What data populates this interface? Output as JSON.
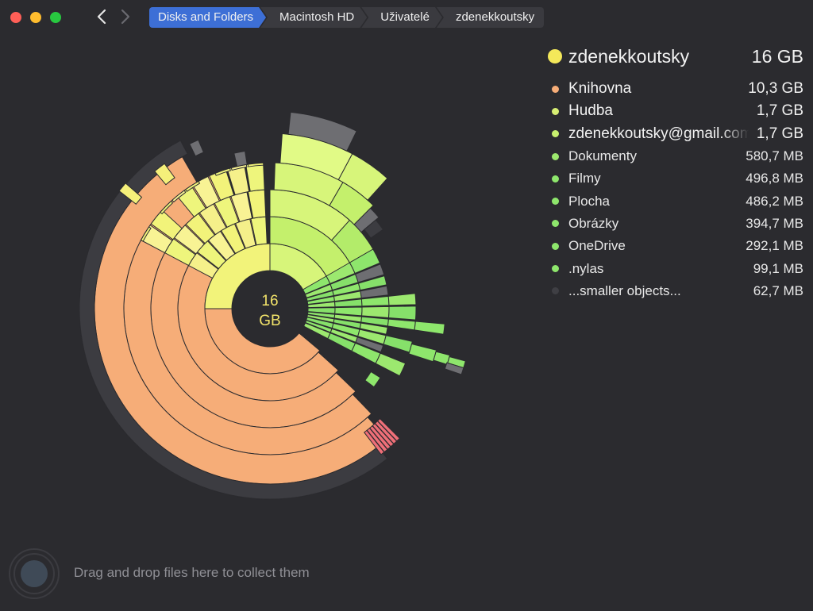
{
  "window": {
    "buttons": {
      "close_color": "#fe5f57",
      "minimize_color": "#febc2e",
      "zoom_color": "#28c840"
    },
    "nav": {
      "back_icon": "chevron-left-icon",
      "forward_icon": "chevron-right-icon"
    }
  },
  "breadcrumb": [
    {
      "label": "Disks and Folders",
      "active": true
    },
    {
      "label": "Macintosh HD",
      "active": false
    },
    {
      "label": "Uživatelé",
      "active": false
    },
    {
      "label": "zdenekkoutsky",
      "active": false
    }
  ],
  "center": {
    "size_value": "16",
    "size_unit": "GB"
  },
  "legend": {
    "root": {
      "name": "zdenekkoutsky",
      "size": "16 GB",
      "color": "#f4e85a"
    },
    "items": [
      {
        "name": "Knihovna",
        "size": "10,3 GB",
        "color": "#f6ad78"
      },
      {
        "name": "Hudba",
        "size": "1,7 GB",
        "color": "#d7ee73"
      },
      {
        "name": "zdenekkoutsky@gmail.com",
        "size": "1,7 GB",
        "color": "#c8f06e"
      },
      {
        "name": "Dokumenty",
        "size": "580,7 MB",
        "color": "#9de86e"
      },
      {
        "name": "Filmy",
        "size": "496,8 MB",
        "color": "#8ee66c"
      },
      {
        "name": "Plocha",
        "size": "486,2 MB",
        "color": "#8ee66c"
      },
      {
        "name": "Obrázky",
        "size": "394,7 MB",
        "color": "#8ee66c"
      },
      {
        "name": "OneDrive",
        "size": "292,1 MB",
        "color": "#8ee66c"
      },
      {
        "name": ".nylas",
        "size": "99,1 MB",
        "color": "#8ee66c"
      },
      {
        "name": "...smaller objects...",
        "size": "62,7 MB",
        "color": "#3f3f44"
      }
    ]
  },
  "colors": {
    "background": "#2b2b2f",
    "breadcrumb_active": "#3d6fd6",
    "library": "#f6ad78",
    "music": "#ecf07a",
    "green": "#8ee66c",
    "grey": "#6e6e72",
    "red": "#ef6f78"
  },
  "dropzone": {
    "text": "Drag and drop files here to collect them",
    "icon": "collect-target-icon"
  }
}
